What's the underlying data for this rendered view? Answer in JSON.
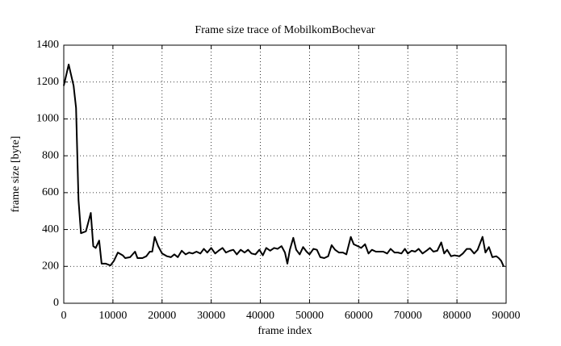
{
  "chart_data": {
    "type": "line",
    "title": "Frame size trace of MobilkomBochevar",
    "xlabel": "frame index",
    "ylabel": "frame size [byte]",
    "x": [
      0,
      1000,
      2000,
      2500,
      3000,
      3500,
      4500,
      5500,
      6000,
      6500,
      7200,
      7700,
      8500,
      9500,
      10200,
      11000,
      12000,
      12500,
      13500,
      14500,
      15000,
      16000,
      16800,
      17500,
      18000,
      18500,
      19200,
      20000,
      21000,
      21800,
      22500,
      23200,
      24000,
      24800,
      25500,
      26200,
      27000,
      27800,
      28500,
      29200,
      30000,
      30800,
      31500,
      32300,
      33000,
      33800,
      34500,
      35200,
      36000,
      36800,
      37500,
      38200,
      39000,
      39800,
      40500,
      41200,
      42000,
      42800,
      43500,
      44300,
      45000,
      45500,
      46000,
      46700,
      47300,
      48000,
      48700,
      49400,
      50000,
      50800,
      51500,
      52200,
      53000,
      53800,
      54500,
      55200,
      56000,
      56800,
      57500,
      58400,
      59000,
      59800,
      60500,
      61300,
      62000,
      62700,
      63500,
      64300,
      65000,
      65800,
      66500,
      67300,
      68000,
      68700,
      69400,
      70000,
      70800,
      71500,
      72200,
      73000,
      73800,
      74500,
      75200,
      76000,
      76800,
      77400,
      78000,
      78800,
      79500,
      80500,
      81200,
      82000,
      82700,
      83500,
      84200,
      85200,
      85800,
      86500,
      87200,
      88000,
      88500,
      89000,
      89500
    ],
    "values": [
      1180,
      1295,
      1180,
      1060,
      560,
      380,
      390,
      490,
      310,
      300,
      340,
      215,
      215,
      205,
      230,
      275,
      260,
      245,
      250,
      280,
      245,
      245,
      255,
      280,
      280,
      360,
      310,
      270,
      255,
      250,
      265,
      250,
      285,
      265,
      275,
      270,
      280,
      270,
      295,
      275,
      300,
      270,
      285,
      300,
      275,
      285,
      290,
      265,
      290,
      275,
      290,
      270,
      265,
      290,
      260,
      300,
      285,
      300,
      295,
      310,
      275,
      215,
      290,
      355,
      290,
      265,
      305,
      280,
      265,
      295,
      290,
      250,
      245,
      255,
      315,
      290,
      275,
      275,
      265,
      360,
      320,
      310,
      300,
      320,
      270,
      290,
      280,
      280,
      280,
      270,
      295,
      275,
      275,
      270,
      295,
      270,
      285,
      280,
      295,
      270,
      285,
      300,
      280,
      285,
      330,
      270,
      290,
      255,
      260,
      255,
      270,
      295,
      295,
      270,
      290,
      360,
      275,
      305,
      250,
      255,
      245,
      230,
      200
    ],
    "color": "#000000",
    "xlim": [
      0,
      90000
    ],
    "xticks": [
      0,
      10000,
      20000,
      30000,
      40000,
      50000,
      60000,
      70000,
      80000,
      90000
    ],
    "ylim": [
      0,
      1400
    ],
    "yticks": [
      0,
      200,
      400,
      600,
      800,
      1000,
      1200,
      1400
    ],
    "grid": true
  }
}
